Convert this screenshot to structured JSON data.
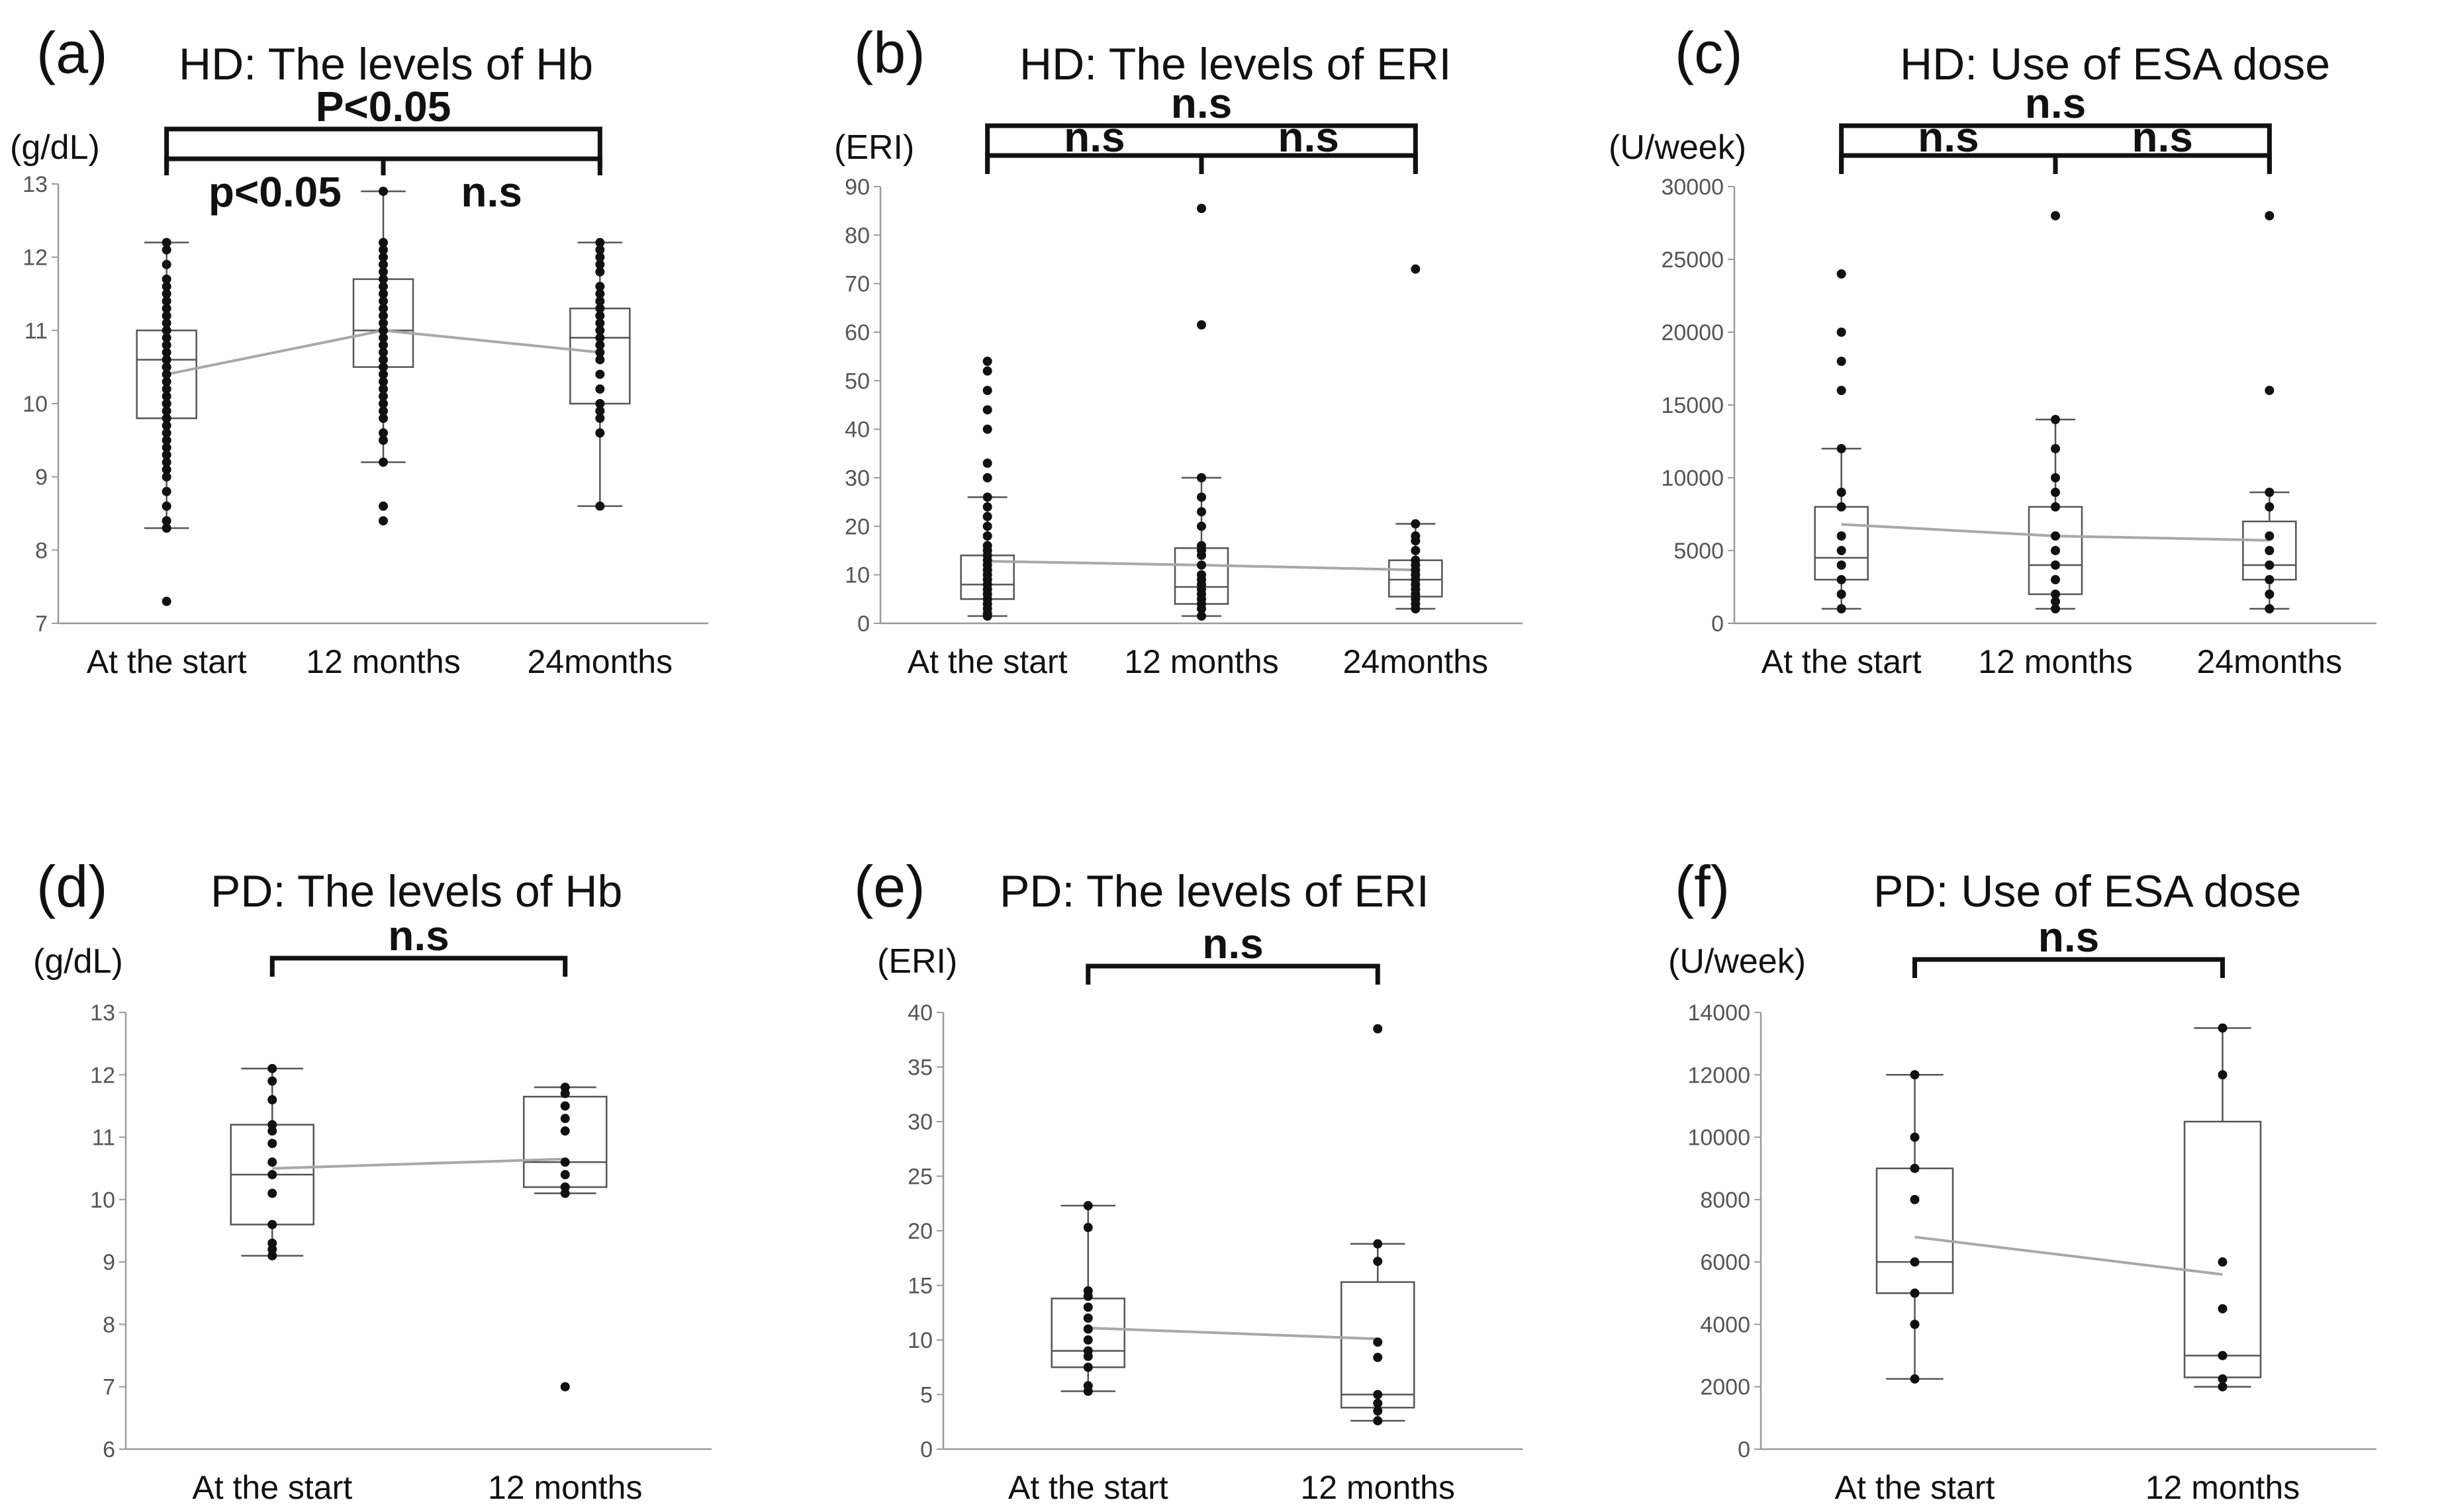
{
  "figure": {
    "panels": [
      {
        "label": "(a)",
        "title": "HD: The levels of Hb",
        "unit": "(g/dL)"
      },
      {
        "label": "(b)",
        "title": "HD: The levels of ERI",
        "unit": "(ERI)"
      },
      {
        "label": "(c)",
        "title": "HD: Use of ESA dose",
        "unit": "(U/week)"
      },
      {
        "label": "(d)",
        "title": "PD: The levels of Hb",
        "unit": "(g/dL)"
      },
      {
        "label": "(e)",
        "title": "PD: The levels of ERI",
        "unit": "(ERI)"
      },
      {
        "label": "(f)",
        "title": "PD: Use of ESA dose",
        "unit": "(U/week)"
      }
    ]
  },
  "chart_data": [
    {
      "type": "box",
      "panel": "(a)",
      "title": "HD: The levels of Hb",
      "ylabel": "(g/dL)",
      "ylim": [
        7,
        13
      ],
      "yticks": [
        7,
        8,
        9,
        10,
        11,
        12,
        13
      ],
      "categories": [
        "At the start",
        "12 months",
        "24months"
      ],
      "boxes": [
        {
          "whisker_low": 8.3,
          "q1": 9.8,
          "median": 10.6,
          "q3": 11.0,
          "whisker_high": 12.2,
          "mean": 10.4,
          "points": [
            7.3,
            8.3,
            8.4,
            8.6,
            8.8,
            9.0,
            9.1,
            9.2,
            9.3,
            9.4,
            9.5,
            9.6,
            9.7,
            9.8,
            9.9,
            10.0,
            10.0,
            10.1,
            10.2,
            10.3,
            10.4,
            10.5,
            10.5,
            10.6,
            10.6,
            10.7,
            10.8,
            10.9,
            11.0,
            11.1,
            11.2,
            11.3,
            11.4,
            11.5,
            11.6,
            11.7,
            11.9,
            12.1,
            12.2
          ]
        },
        {
          "whisker_low": 9.2,
          "q1": 10.5,
          "median": 11.0,
          "q3": 11.7,
          "whisker_high": 12.9,
          "mean": 11.0,
          "points": [
            8.4,
            8.6,
            9.2,
            9.5,
            9.6,
            9.8,
            9.9,
            10.0,
            10.1,
            10.2,
            10.3,
            10.4,
            10.5,
            10.6,
            10.7,
            10.8,
            10.9,
            11.0,
            11.0,
            11.1,
            11.2,
            11.3,
            11.4,
            11.5,
            11.6,
            11.7,
            11.8,
            11.9,
            12.0,
            12.1,
            12.2,
            12.9
          ]
        },
        {
          "whisker_low": 8.6,
          "q1": 10.0,
          "median": 10.9,
          "q3": 11.3,
          "whisker_high": 12.2,
          "mean": 10.7,
          "points": [
            8.6,
            9.6,
            9.8,
            9.9,
            10.0,
            10.2,
            10.4,
            10.6,
            10.7,
            10.8,
            10.9,
            11.0,
            11.1,
            11.2,
            11.3,
            11.4,
            11.5,
            11.6,
            11.8,
            11.9,
            12.0,
            12.1,
            12.2
          ]
        }
      ],
      "brackets": [
        {
          "from": 0,
          "to": 2,
          "text": "P<0.05",
          "level": "top"
        },
        {
          "from": 0,
          "to": 1,
          "text": "p<0.05",
          "level": "inner"
        },
        {
          "from": 1,
          "to": 2,
          "text": "n.s",
          "level": "inner"
        }
      ]
    },
    {
      "type": "box",
      "panel": "(b)",
      "title": "HD: The levels of ERI",
      "ylabel": "(ERI)",
      "ylim": [
        0,
        90
      ],
      "yticks": [
        0,
        10,
        20,
        30,
        40,
        50,
        60,
        70,
        80,
        90
      ],
      "categories": [
        "At the start",
        "12 months",
        "24months"
      ],
      "boxes": [
        {
          "whisker_low": 1.5,
          "q1": 5,
          "median": 8,
          "q3": 14,
          "whisker_high": 26,
          "mean": 12.8,
          "points": [
            1.5,
            2,
            3,
            4,
            5,
            6,
            7,
            8,
            9,
            10,
            11,
            12,
            13,
            14,
            15,
            16,
            18,
            20,
            22,
            24,
            26,
            30,
            33,
            40,
            44,
            48,
            52,
            54
          ]
        },
        {
          "whisker_low": 1.5,
          "q1": 4,
          "median": 7.5,
          "q3": 15.5,
          "whisker_high": 30,
          "mean": 12,
          "points": [
            1.5,
            3,
            4,
            5,
            6,
            7,
            8,
            9,
            10,
            12,
            14,
            15,
            16,
            20,
            23,
            26,
            30,
            61.5,
            85.5
          ]
        },
        {
          "whisker_low": 3,
          "q1": 5.5,
          "median": 9,
          "q3": 13,
          "whisker_high": 20.5,
          "mean": 11,
          "points": [
            3,
            4,
            5,
            6,
            7,
            8,
            9,
            10,
            11,
            12,
            13,
            15,
            17,
            18,
            20.5,
            73
          ]
        }
      ],
      "brackets": [
        {
          "from": 0,
          "to": 2,
          "text": "n.s",
          "level": "top"
        },
        {
          "from": 0,
          "to": 1,
          "text": "n.s",
          "level": "inner"
        },
        {
          "from": 1,
          "to": 2,
          "text": "n.s",
          "level": "inner"
        }
      ]
    },
    {
      "type": "box",
      "panel": "(c)",
      "title": "HD: Use of ESA dose",
      "ylabel": "(U/week)",
      "ylim": [
        0,
        30000
      ],
      "yticks": [
        0,
        5000,
        10000,
        15000,
        20000,
        25000,
        30000
      ],
      "categories": [
        "At the start",
        "12 months",
        "24months"
      ],
      "boxes": [
        {
          "whisker_low": 1000,
          "q1": 3000,
          "median": 4500,
          "q3": 8000,
          "whisker_high": 12000,
          "mean": 6800,
          "points": [
            1000,
            2000,
            3000,
            4000,
            5000,
            6000,
            8000,
            9000,
            12000,
            16000,
            18000,
            20000,
            24000
          ]
        },
        {
          "whisker_low": 1000,
          "q1": 2000,
          "median": 4000,
          "q3": 8000,
          "whisker_high": 14000,
          "mean": 6000,
          "points": [
            1000,
            1500,
            2000,
            3000,
            4000,
            5000,
            6000,
            8000,
            9000,
            10000,
            12000,
            14000,
            28000
          ]
        },
        {
          "whisker_low": 1000,
          "q1": 3000,
          "median": 4000,
          "q3": 7000,
          "whisker_high": 9000,
          "mean": 5700,
          "points": [
            1000,
            2000,
            3000,
            4000,
            5000,
            6000,
            8000,
            9000,
            16000,
            28000
          ]
        }
      ],
      "brackets": [
        {
          "from": 0,
          "to": 2,
          "text": "n.s",
          "level": "top"
        },
        {
          "from": 0,
          "to": 1,
          "text": "n.s",
          "level": "inner"
        },
        {
          "from": 1,
          "to": 2,
          "text": "n.s",
          "level": "inner"
        }
      ]
    },
    {
      "type": "box",
      "panel": "(d)",
      "title": "PD: The levels of Hb",
      "ylabel": "(g/dL)",
      "ylim": [
        6,
        13
      ],
      "yticks": [
        6,
        7,
        8,
        9,
        10,
        11,
        12,
        13
      ],
      "categories": [
        "At the start",
        "12 months"
      ],
      "boxes": [
        {
          "whisker_low": 9.1,
          "q1": 9.6,
          "median": 10.4,
          "q3": 11.2,
          "whisker_high": 12.1,
          "mean": 10.5,
          "points": [
            9.1,
            9.2,
            9.3,
            9.6,
            10.1,
            10.4,
            10.6,
            10.9,
            11.1,
            11.2,
            11.6,
            11.9,
            12.1
          ]
        },
        {
          "whisker_low": 10.1,
          "q1": 10.2,
          "median": 10.6,
          "q3": 11.65,
          "whisker_high": 11.8,
          "mean": 10.65,
          "points": [
            7.0,
            10.1,
            10.2,
            10.4,
            10.6,
            11.1,
            11.3,
            11.5,
            11.7,
            11.8
          ]
        }
      ],
      "brackets": [
        {
          "from": 0,
          "to": 1,
          "text": "n.s",
          "level": "top"
        }
      ]
    },
    {
      "type": "box",
      "panel": "(e)",
      "title": "PD: The levels of ERI",
      "ylabel": "(ERI)",
      "ylim": [
        0,
        40
      ],
      "yticks": [
        0,
        5,
        10,
        15,
        20,
        25,
        30,
        35,
        40
      ],
      "categories": [
        "At the start",
        "12 months"
      ],
      "boxes": [
        {
          "whisker_low": 5.3,
          "q1": 7.5,
          "median": 9,
          "q3": 13.8,
          "whisker_high": 22.3,
          "mean": 11.1,
          "points": [
            5.3,
            5.8,
            7.5,
            8.5,
            9,
            10,
            11,
            12,
            13,
            14,
            14.5,
            20.3,
            22.3
          ]
        },
        {
          "whisker_low": 2.6,
          "q1": 3.8,
          "median": 5,
          "q3": 15.3,
          "whisker_high": 18.8,
          "mean": 10.1,
          "points": [
            2.6,
            3.5,
            4.2,
            5,
            8.4,
            9.8,
            17.2,
            18.8,
            38.5
          ]
        }
      ],
      "brackets": [
        {
          "from": 0,
          "to": 1,
          "text": "n.s",
          "level": "top"
        }
      ]
    },
    {
      "type": "box",
      "panel": "(f)",
      "title": "PD: Use of ESA dose",
      "ylabel": "(U/week)",
      "ylim": [
        0,
        14000
      ],
      "yticks": [
        0,
        2000,
        4000,
        6000,
        8000,
        10000,
        12000,
        14000
      ],
      "categories": [
        "At the start",
        "12 months"
      ],
      "boxes": [
        {
          "whisker_low": 2250,
          "q1": 5000,
          "median": 6000,
          "q3": 9000,
          "whisker_high": 12000,
          "mean": 6800,
          "points": [
            2250,
            4000,
            5000,
            6000,
            8000,
            9000,
            10000,
            12000
          ]
        },
        {
          "whisker_low": 2000,
          "q1": 2300,
          "median": 3000,
          "q3": 10500,
          "whisker_high": 13500,
          "mean": 5600,
          "points": [
            2000,
            2250,
            3000,
            4500,
            6000,
            12000,
            13500
          ]
        }
      ],
      "brackets": [
        {
          "from": 0,
          "to": 1,
          "text": "n.s",
          "level": "top"
        }
      ]
    }
  ]
}
